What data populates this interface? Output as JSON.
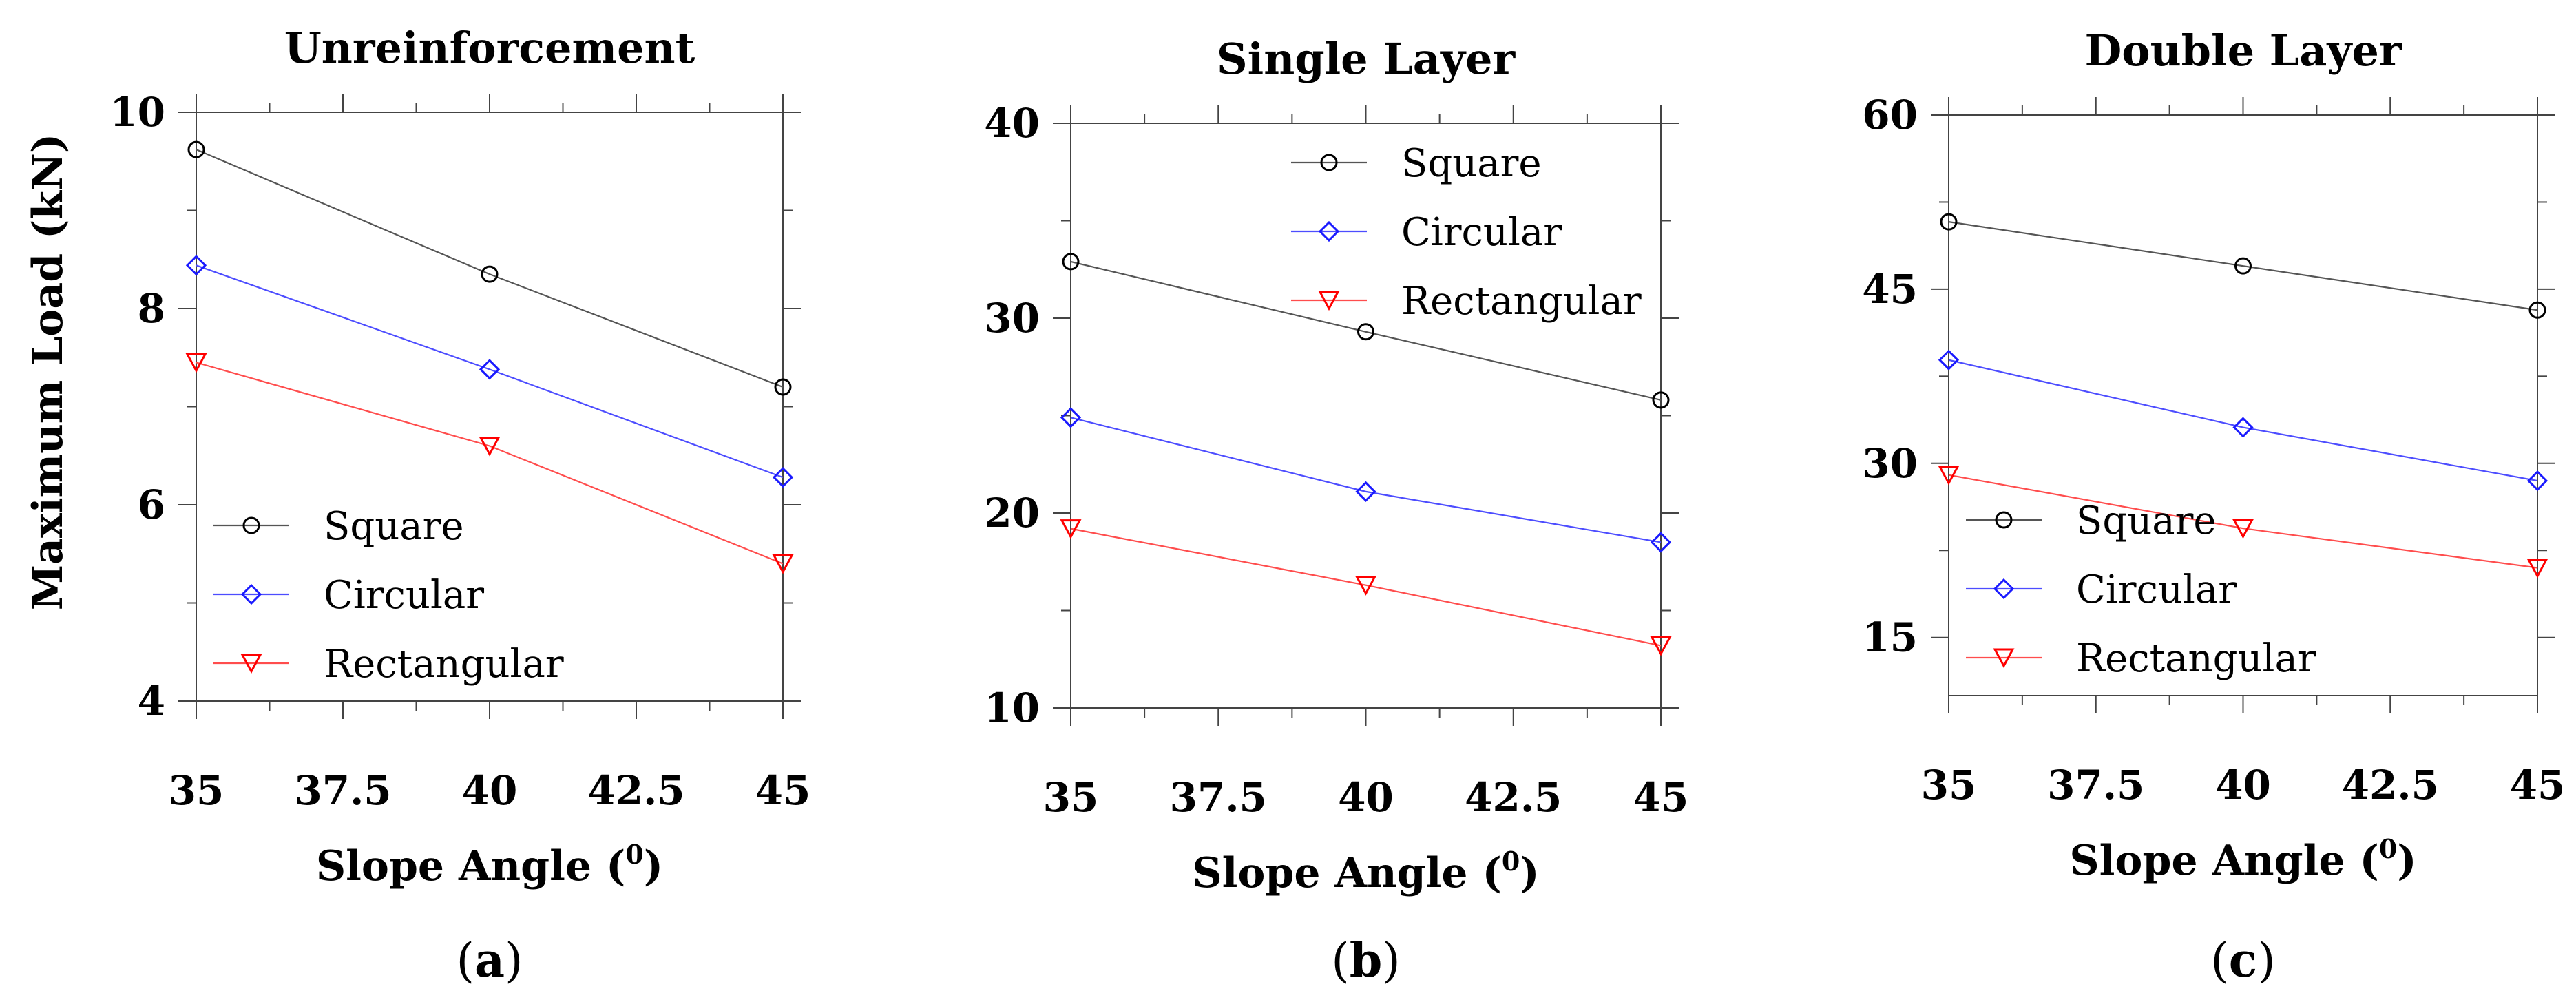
{
  "figure": {
    "ylabel": "Maximum Load (kN)",
    "xlabel_main": "Slope Angle (",
    "xlabel_sup": "0",
    "xlabel_close": ")"
  },
  "colors": {
    "square": "#000000",
    "circular": "#1a1aff",
    "rectangular": "#ff0000",
    "square_line": "#555555",
    "circular_line": "#4d4dff",
    "rectangular_line": "#ff4d4d"
  },
  "panels": [
    {
      "id": "a",
      "label_open": "(",
      "label_letter": "a",
      "label_close": ")"
    },
    {
      "id": "b",
      "label_open": "(",
      "label_letter": "b",
      "label_close": ")"
    },
    {
      "id": "c",
      "label_open": "(",
      "label_letter": "c",
      "label_close": ")"
    }
  ],
  "chart_data": [
    {
      "type": "line",
      "title": "Unreinforcement",
      "xlabel": "Slope Angle (0)",
      "ylabel": "Maximum Load (kN)",
      "x": [
        35,
        40,
        45
      ],
      "xlim": [
        35,
        45
      ],
      "xticks": [
        "35",
        "37.5",
        "40",
        "42.5",
        "45"
      ],
      "ylim": [
        4,
        10
      ],
      "yticks": [
        "4",
        "6",
        "8",
        "10"
      ],
      "legend_position": "bottom-left",
      "series": [
        {
          "name": "Square",
          "marker": "circle",
          "values": [
            9.62,
            8.35,
            7.2
          ]
        },
        {
          "name": "Circular",
          "marker": "diamond",
          "values": [
            8.44,
            7.38,
            6.28
          ]
        },
        {
          "name": "Rectangular",
          "marker": "triangle-down",
          "values": [
            7.45,
            6.6,
            5.4
          ]
        }
      ]
    },
    {
      "type": "line",
      "title": "Single Layer",
      "xlabel": "Slope Angle (0)",
      "x": [
        35,
        40,
        45
      ],
      "xlim": [
        35,
        45
      ],
      "xticks": [
        "35",
        "37.5",
        "40",
        "42.5",
        "45"
      ],
      "ylim": [
        10,
        40
      ],
      "yticks": [
        "10",
        "20",
        "30",
        "40"
      ],
      "legend_position": "top-right",
      "series": [
        {
          "name": "Square",
          "marker": "circle",
          "values": [
            32.9,
            29.3,
            25.8
          ]
        },
        {
          "name": "Circular",
          "marker": "diamond",
          "values": [
            24.9,
            21.1,
            18.5
          ]
        },
        {
          "name": "Rectangular",
          "marker": "triangle-down",
          "values": [
            19.2,
            16.3,
            13.2
          ]
        }
      ]
    },
    {
      "type": "line",
      "title": "Double Layer",
      "xlabel": "Slope Angle (0)",
      "x": [
        35,
        40,
        45
      ],
      "xlim": [
        35,
        45
      ],
      "xticks": [
        "35",
        "37.5",
        "40",
        "42.5",
        "45"
      ],
      "ylim": [
        10,
        60
      ],
      "yticks": [
        "15",
        "30",
        "45",
        "60"
      ],
      "legend_position": "bottom-left",
      "series": [
        {
          "name": "Square",
          "marker": "circle",
          "values": [
            50.8,
            47.0,
            43.2
          ]
        },
        {
          "name": "Circular",
          "marker": "diamond",
          "values": [
            38.9,
            33.1,
            28.5
          ]
        },
        {
          "name": "Rectangular",
          "marker": "triangle-down",
          "values": [
            29.0,
            24.4,
            21.0
          ]
        }
      ]
    }
  ]
}
